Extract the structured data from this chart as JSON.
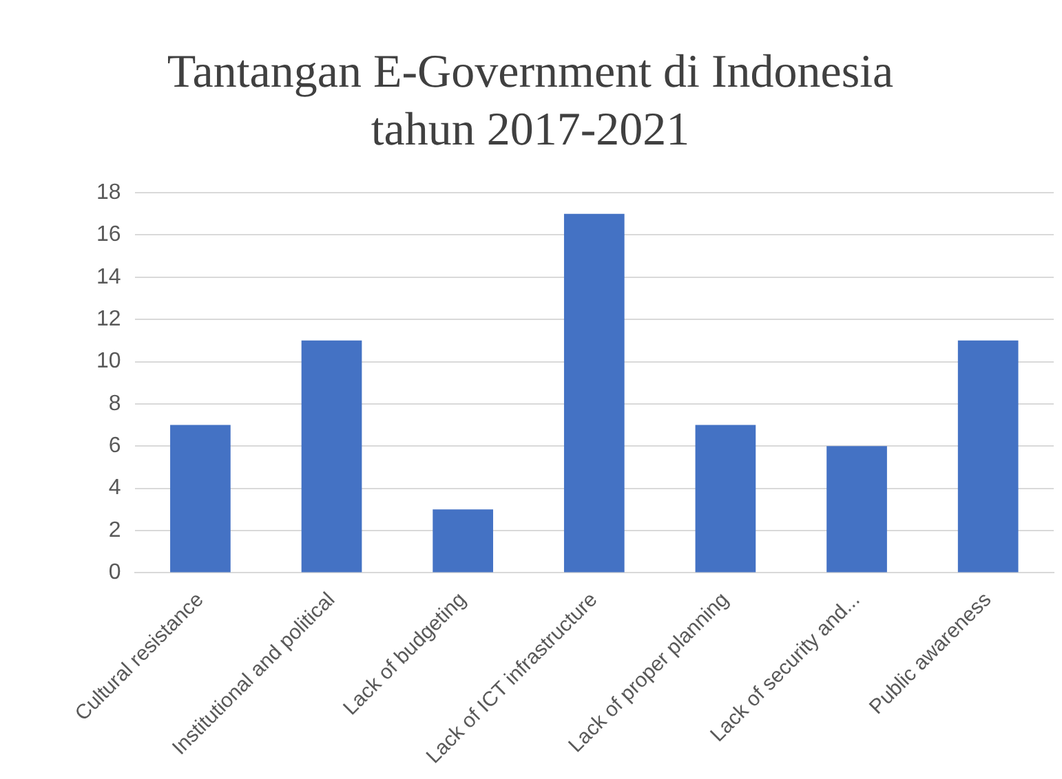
{
  "chart_data": {
    "type": "bar",
    "title": "Tantangan E-Government di Indonesia tahun 2017-2021",
    "categories": [
      "Cultural resistance",
      "Institutional and political",
      "Lack of budgeting",
      "Lack of ICT infrastructure",
      "Lack of proper planning",
      "Lack of security and...",
      "Public awareness"
    ],
    "values": [
      7,
      11,
      3,
      17,
      7,
      6,
      11
    ],
    "color": "#4472c4",
    "ylim": [
      0,
      18
    ],
    "yticks": [
      0,
      2,
      4,
      6,
      8,
      10,
      12,
      14,
      16,
      18
    ],
    "grid": "y",
    "legend": false
  }
}
